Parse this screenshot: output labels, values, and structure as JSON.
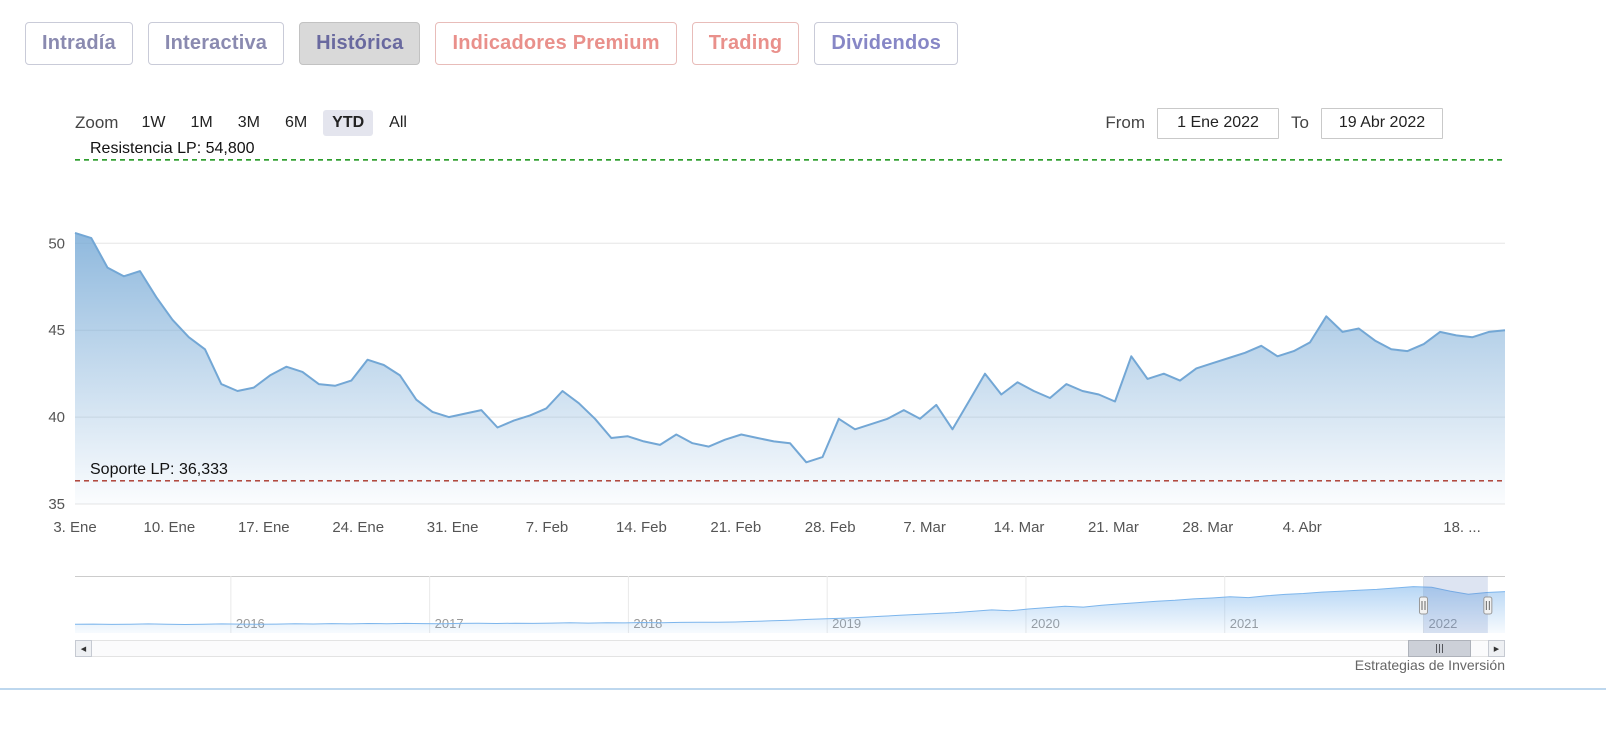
{
  "tabs": {
    "selected": "Histórica",
    "items": [
      {
        "label": "Intradía"
      },
      {
        "label": "Interactiva"
      },
      {
        "label": "Histórica"
      },
      {
        "label": "Indicadores Premium"
      },
      {
        "label": "Trading"
      },
      {
        "label": "Dividendos"
      }
    ]
  },
  "toolbar": {
    "zoom_label": "Zoom",
    "zoom_selected": "YTD",
    "zoom_buttons": [
      {
        "label": "1W"
      },
      {
        "label": "1M"
      },
      {
        "label": "3M"
      },
      {
        "label": "6M"
      },
      {
        "label": "YTD"
      },
      {
        "label": "All"
      }
    ],
    "from_label": "From",
    "from_value": "1 Ene 2022",
    "to_label": "To",
    "to_value": "19 Abr 2022"
  },
  "chart_data": {
    "type": "area",
    "main": {
      "ylim": [
        35,
        55.5
      ],
      "yticks": [
        35,
        40,
        45,
        50
      ],
      "grid": "horizontal",
      "x_labels": [
        "3. Ene",
        "10. Ene",
        "17. Ene",
        "24. Ene",
        "31. Ene",
        "7. Feb",
        "14. Feb",
        "21. Feb",
        "28. Feb",
        "7. Mar",
        "14. Mar",
        "21. Mar",
        "28. Mar",
        "4. Abr",
        "18. ..."
      ],
      "line_color": "#73a7d5",
      "values": [
        50.6,
        50.3,
        48.6,
        48.1,
        48.4,
        46.9,
        45.6,
        44.6,
        43.9,
        41.9,
        41.5,
        41.7,
        42.4,
        42.9,
        42.6,
        41.9,
        41.8,
        42.1,
        43.3,
        43.0,
        42.4,
        41.0,
        40.3,
        40.0,
        40.2,
        40.4,
        39.4,
        39.8,
        40.1,
        40.5,
        41.5,
        40.8,
        39.9,
        38.8,
        38.9,
        38.6,
        38.4,
        39.0,
        38.5,
        38.3,
        38.7,
        39.0,
        38.8,
        38.6,
        38.5,
        37.4,
        37.7,
        39.9,
        39.3,
        39.6,
        39.9,
        40.4,
        39.9,
        40.7,
        39.3,
        40.9,
        42.5,
        41.3,
        42.0,
        41.5,
        41.1,
        41.9,
        41.5,
        41.3,
        40.9,
        43.5,
        42.2,
        42.5,
        42.1,
        42.8,
        43.1,
        43.4,
        43.7,
        44.1,
        43.5,
        43.8,
        44.3,
        45.8,
        44.9,
        45.1,
        44.4,
        43.9,
        43.8,
        44.2,
        44.9,
        44.7,
        44.6,
        44.9,
        45.0
      ],
      "resistance": {
        "label": "Resistencia LP: 54,800",
        "value": 54.8,
        "color": "#119111"
      },
      "support": {
        "label": "Soporte LP: 36,333",
        "value": 36.333,
        "color": "#a83226"
      }
    },
    "navigator": {
      "type": "area",
      "year_labels": [
        "2016",
        "2017",
        "2018",
        "2019",
        "2020",
        "2021",
        "2022"
      ],
      "values": [
        9.6,
        9.8,
        9.4,
        9.7,
        10.0,
        9.6,
        9.3,
        9.7,
        10.0,
        9.8,
        9.5,
        9.8,
        10.1,
        9.9,
        10.3,
        10.0,
        10.4,
        10.2,
        10.5,
        10.3,
        10.1,
        10.5,
        10.7,
        10.4,
        10.8,
        10.5,
        10.9,
        11.2,
        10.9,
        11.3,
        11.1,
        11.5,
        11.2,
        11.6,
        11.9,
        11.7,
        12.1,
        12.7,
        13.4,
        14.1,
        14.9,
        15.7,
        16.4,
        17.4,
        18.3,
        19.4,
        20.4,
        21.4,
        22.4,
        23.9,
        25.4,
        24.4,
        26.4,
        27.9,
        29.4,
        28.4,
        30.4,
        31.9,
        33.4,
        34.9,
        35.9,
        37.4,
        38.4,
        39.9,
        38.9,
        40.9,
        42.4,
        43.4,
        44.9,
        45.9,
        46.9,
        47.9,
        49.4,
        50.9,
        50.2,
        46.0,
        42.5,
        44.5,
        45.5
      ],
      "selection": [
        0.943,
        0.988
      ]
    }
  },
  "credit": "Estrategias de Inversión",
  "colors": {
    "accent_line": "#73a7d5",
    "resistance": "#119111",
    "support": "#a83226",
    "divider": "#bdd7ee"
  }
}
